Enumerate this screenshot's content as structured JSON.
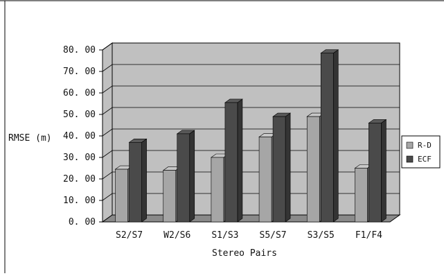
{
  "chart_data": {
    "type": "bar",
    "categories": [
      "S2/S7",
      "W2/S6",
      "S1/S3",
      "S5/S7",
      "S3/S5",
      "F1/F4"
    ],
    "series": [
      {
        "name": "R-D",
        "values": [
          24.5,
          24.0,
          30.0,
          39.5,
          49.0,
          25.0
        ],
        "color": "#a6a6a6"
      },
      {
        "name": "ECF",
        "values": [
          37.0,
          41.0,
          55.5,
          49.0,
          78.5,
          46.0
        ],
        "color": "#4a4a4a"
      }
    ],
    "ytick_labels": [
      "0. 00",
      "10. 00",
      "20. 00",
      "30. 00",
      "40. 00",
      "50. 00",
      "60. 00",
      "70. 00",
      "80. 00"
    ],
    "ylim": [
      0,
      80
    ],
    "xlabel": "Stereo Pairs",
    "ylabel": "RMSE (m)",
    "grid": true,
    "legend_position": "right",
    "colors": {
      "wall": "#c0c0c0",
      "floor": "#8a8a8a",
      "grid": "#000000"
    }
  }
}
